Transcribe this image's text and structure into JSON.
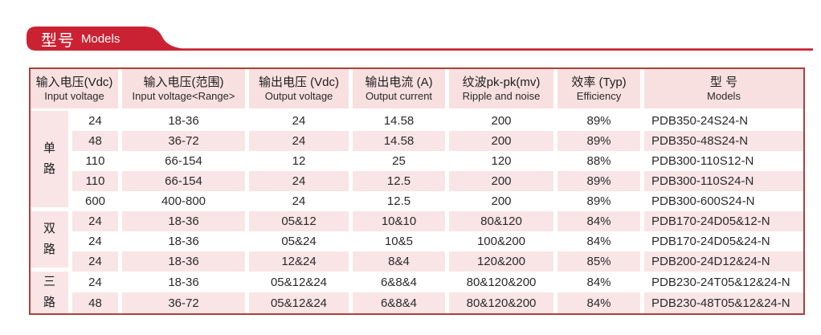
{
  "banner": {
    "title_zh": "型号",
    "title_en": "Models",
    "color": "#cb2233"
  },
  "table": {
    "border_color": "#ad403d",
    "header_bg": "#f8e0e0",
    "row_alt_bg": "#f9e5e5",
    "columns": [
      {
        "key": "input-voltage",
        "zh": "输入电压(Vdc)",
        "en": "Input voltage"
      },
      {
        "key": "input-range",
        "zh": "输入电压(范围)",
        "en": "Input voltage<Range>"
      },
      {
        "key": "output-voltage",
        "zh": "输出电压 (Vdc)",
        "en": "Output voltage"
      },
      {
        "key": "output-current",
        "zh": "输出电流 (A)",
        "en": "Output current"
      },
      {
        "key": "ripple",
        "zh": "纹波pk-pk(mv)",
        "en": "Ripple and noise"
      },
      {
        "key": "efficiency",
        "zh": "效率 (Typ)",
        "en": "Efficiency"
      },
      {
        "key": "model",
        "zh": "型 号",
        "en": "Models"
      }
    ],
    "groups": [
      {
        "label": "单路",
        "rows": [
          [
            "24",
            "18-36",
            "24",
            "14.58",
            "200",
            "89%",
            "PDB350-24S24-N"
          ],
          [
            "48",
            "36-72",
            "24",
            "14.58",
            "200",
            "89%",
            "PDB350-48S24-N"
          ],
          [
            "110",
            "66-154",
            "12",
            "25",
            "120",
            "88%",
            "PDB300-110S12-N"
          ],
          [
            "110",
            "66-154",
            "24",
            "12.5",
            "200",
            "89%",
            "PDB300-110S24-N"
          ],
          [
            "600",
            "400-800",
            "24",
            "12.5",
            "200",
            "89%",
            "PDB300-600S24-N"
          ]
        ]
      },
      {
        "label": "双路",
        "rows": [
          [
            "24",
            "18-36",
            "05&12",
            "10&10",
            "80&120",
            "84%",
            "PDB170-24D05&12-N"
          ],
          [
            "24",
            "18-36",
            "05&24",
            "10&5",
            "100&200",
            "84%",
            "PDB170-24D05&24-N"
          ],
          [
            "24",
            "18-36",
            "12&24",
            "8&4",
            "120&200",
            "85%",
            "PDB200-24D12&24-N"
          ]
        ]
      },
      {
        "label": "三路",
        "rows": [
          [
            "24",
            "18-36",
            "05&12&24",
            "6&8&4",
            "80&120&200",
            "84%",
            "PDB230-24T05&12&24-N"
          ],
          [
            "48",
            "36-72",
            "05&12&24",
            "6&8&4",
            "80&120&200",
            "84%",
            "PDB230-48T05&12&24-N"
          ]
        ]
      }
    ]
  }
}
